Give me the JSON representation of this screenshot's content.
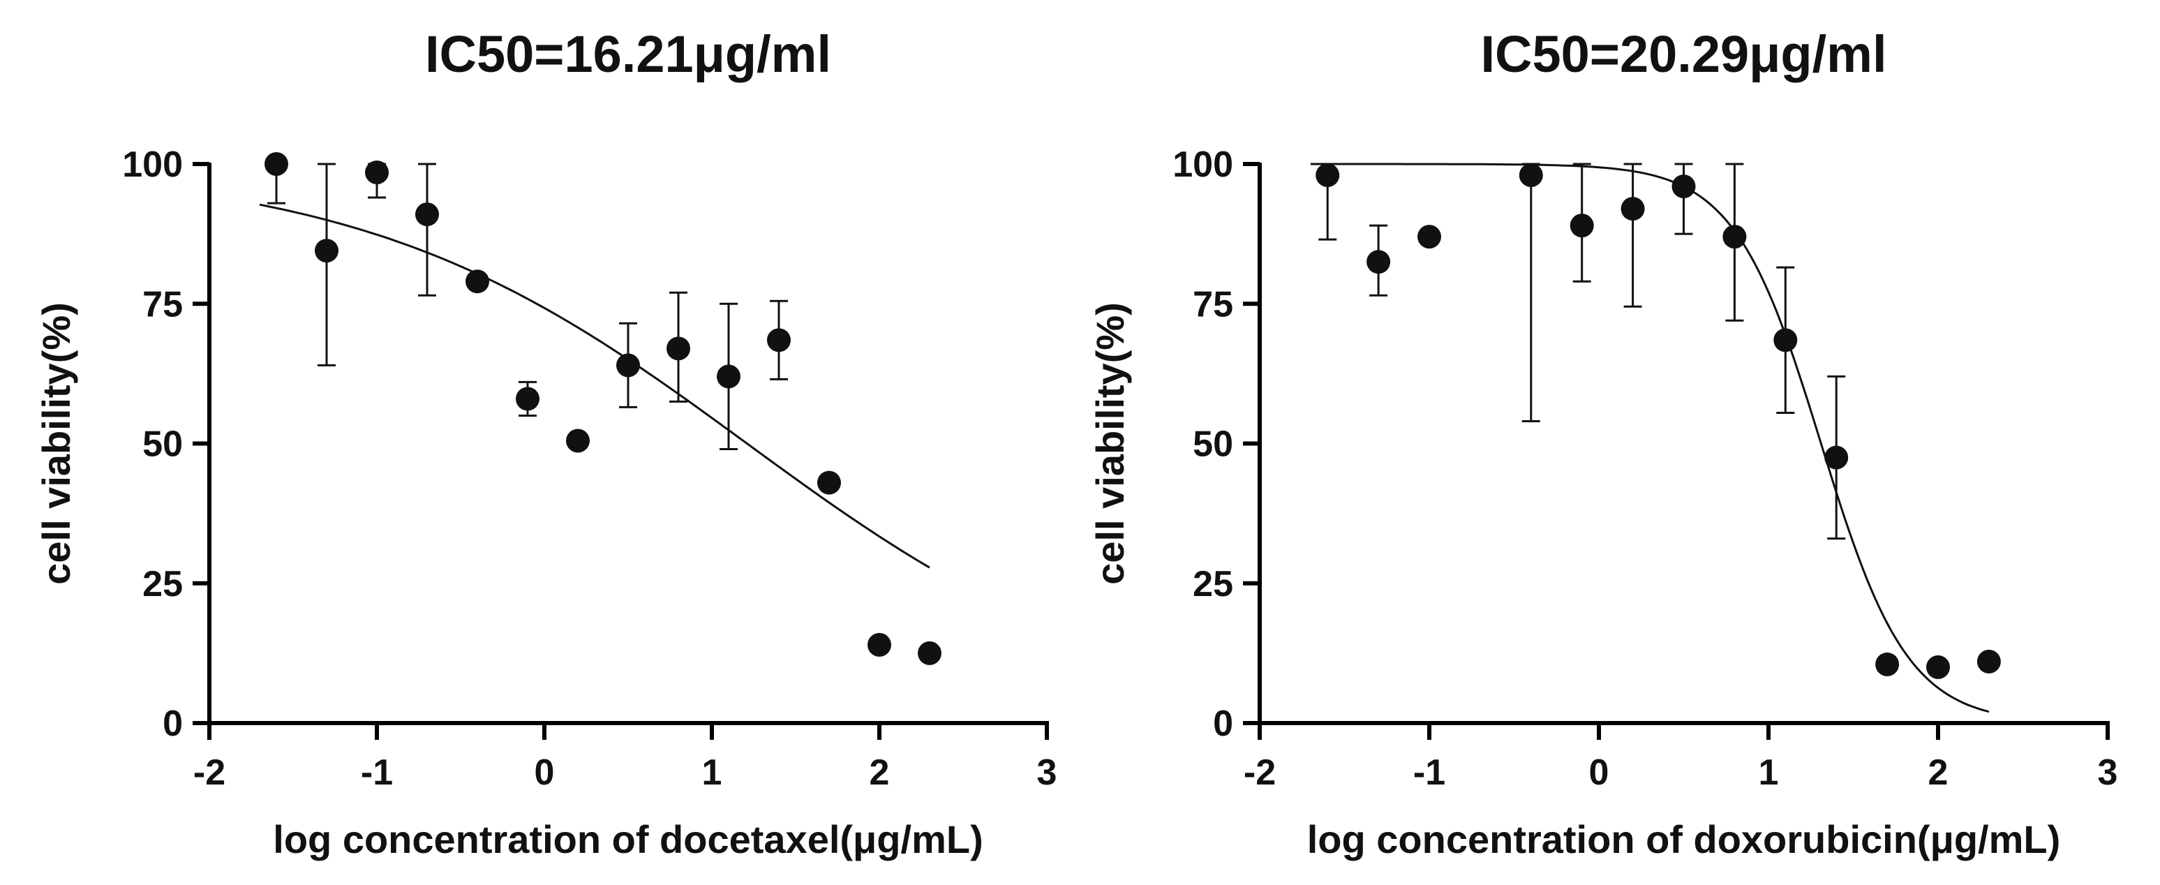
{
  "chart_data": [
    {
      "type": "scatter",
      "title": "IC50=16.21μg/ml",
      "xlabel": "log concentration of docetaxel(μg/mL)",
      "ylabel": "cell viability(%)",
      "xlim": [
        -2,
        3
      ],
      "ylim": [
        0,
        100
      ],
      "xticks": [
        -2,
        -1,
        0,
        1,
        2,
        3
      ],
      "xtick_labels": [
        "-2",
        "-1",
        "0",
        "1",
        "2",
        "3"
      ],
      "yticks": [
        0,
        25,
        50,
        75,
        100
      ],
      "ytick_labels": [
        "0",
        "25",
        "50",
        "75",
        "100"
      ],
      "points": [
        {
          "x": -1.6,
          "y": 100,
          "err_low": 93,
          "err_high": 100
        },
        {
          "x": -1.3,
          "y": 84.5,
          "err_low": 64,
          "err_high": 100
        },
        {
          "x": -1.0,
          "y": 98.5,
          "err_low": 94,
          "err_high": 100
        },
        {
          "x": -0.7,
          "y": 91,
          "err_low": 76.5,
          "err_high": 100
        },
        {
          "x": -0.4,
          "y": 79,
          "err_low": 79,
          "err_high": 79
        },
        {
          "x": -0.1,
          "y": 58,
          "err_low": 55,
          "err_high": 61
        },
        {
          "x": 0.2,
          "y": 50.5,
          "err_low": 50.5,
          "err_high": 50.5
        },
        {
          "x": 0.5,
          "y": 64,
          "err_low": 56.5,
          "err_high": 71.5
        },
        {
          "x": 0.8,
          "y": 67,
          "err_low": 57.5,
          "err_high": 77
        },
        {
          "x": 1.1,
          "y": 62,
          "err_low": 49,
          "err_high": 75
        },
        {
          "x": 1.4,
          "y": 68.5,
          "err_low": 61.5,
          "err_high": 75.5
        },
        {
          "x": 1.7,
          "y": 43,
          "err_low": 43,
          "err_high": 43
        },
        {
          "x": 2.0,
          "y": 14,
          "err_low": 14,
          "err_high": 14
        },
        {
          "x": 2.3,
          "y": 12.5,
          "err_low": 12.5,
          "err_high": 12.5
        }
      ],
      "fit": {
        "top": 100,
        "bottom": 0,
        "logIC50": 1.21,
        "hill": 0.38,
        "x_range": [
          -1.7,
          2.3
        ]
      }
    },
    {
      "type": "scatter",
      "title": "IC50=20.29μg/ml",
      "xlabel": "log concentration of doxorubicin(μg/mL)",
      "ylabel": "cell viability(%)",
      "xlim": [
        -2,
        3
      ],
      "ylim": [
        0,
        100
      ],
      "xticks": [
        -2,
        -1,
        0,
        1,
        2,
        3
      ],
      "xtick_labels": [
        "-2",
        "-1",
        "0",
        "1",
        "2",
        "3"
      ],
      "yticks": [
        0,
        25,
        50,
        75,
        100
      ],
      "ytick_labels": [
        "0",
        "25",
        "50",
        "75",
        "100"
      ],
      "points": [
        {
          "x": -1.6,
          "y": 98,
          "err_low": 86.5,
          "err_high": 100
        },
        {
          "x": -1.3,
          "y": 82.5,
          "err_low": 76.5,
          "err_high": 89
        },
        {
          "x": -1.0,
          "y": 87,
          "err_low": 87,
          "err_high": 87
        },
        {
          "x": -0.4,
          "y": 98,
          "err_low": 54,
          "err_high": 100
        },
        {
          "x": -0.1,
          "y": 89,
          "err_low": 79,
          "err_high": 100
        },
        {
          "x": 0.2,
          "y": 92,
          "err_low": 74.5,
          "err_high": 100
        },
        {
          "x": 0.5,
          "y": 96,
          "err_low": 87.5,
          "err_high": 100
        },
        {
          "x": 0.8,
          "y": 87,
          "err_low": 72,
          "err_high": 100
        },
        {
          "x": 1.1,
          "y": 68.5,
          "err_low": 55.5,
          "err_high": 81.5
        },
        {
          "x": 1.4,
          "y": 47.5,
          "err_low": 33,
          "err_high": 62
        },
        {
          "x": 1.7,
          "y": 10.5,
          "err_low": 10.5,
          "err_high": 10.5
        },
        {
          "x": 2.0,
          "y": 10,
          "err_low": 10,
          "err_high": 10
        },
        {
          "x": 2.3,
          "y": 11,
          "err_low": 11,
          "err_high": 11
        }
      ],
      "fit": {
        "top": 100,
        "bottom": 0,
        "logIC50": 1.31,
        "hill": 1.7,
        "x_range": [
          -1.7,
          2.3
        ]
      }
    }
  ]
}
